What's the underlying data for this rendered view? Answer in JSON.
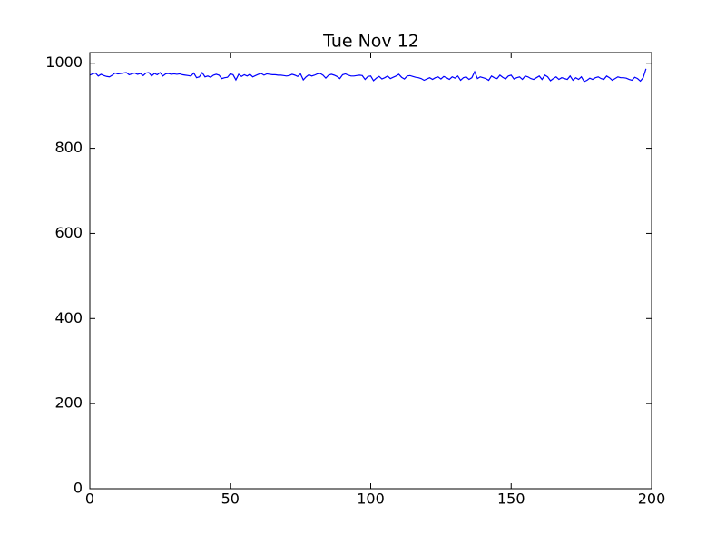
{
  "chart_data": {
    "type": "line",
    "title": "Tue Nov 12",
    "x": [
      0,
      1,
      2,
      3,
      4,
      5,
      6,
      7,
      8,
      9,
      10,
      11,
      12,
      13,
      14,
      15,
      16,
      17,
      18,
      19,
      20,
      21,
      22,
      23,
      24,
      25,
      26,
      27,
      28,
      29,
      30,
      31,
      32,
      33,
      34,
      35,
      36,
      37,
      38,
      39,
      40,
      41,
      42,
      43,
      44,
      45,
      46,
      47,
      48,
      49,
      50,
      51,
      52,
      53,
      54,
      55,
      56,
      57,
      58,
      59,
      60,
      61,
      62,
      63,
      64,
      65,
      66,
      67,
      68,
      69,
      70,
      71,
      72,
      73,
      74,
      75,
      76,
      77,
      78,
      79,
      80,
      81,
      82,
      83,
      84,
      85,
      86,
      87,
      88,
      89,
      90,
      91,
      92,
      93,
      94,
      95,
      96,
      97,
      98,
      99,
      100,
      101,
      102,
      103,
      104,
      105,
      106,
      107,
      108,
      109,
      110,
      111,
      112,
      113,
      114,
      115,
      116,
      117,
      118,
      119,
      120,
      121,
      122,
      123,
      124,
      125,
      126,
      127,
      128,
      129,
      130,
      131,
      132,
      133,
      134,
      135,
      136,
      137,
      138,
      139,
      140,
      141,
      142,
      143,
      144,
      145,
      146,
      147,
      148,
      149,
      150,
      151,
      152,
      153,
      154,
      155,
      156,
      157,
      158,
      159,
      160,
      161,
      162,
      163,
      164,
      165,
      166,
      167,
      168,
      169,
      170,
      171,
      172,
      173,
      174,
      175,
      176,
      177,
      178,
      179,
      180,
      181,
      182,
      183,
      184,
      185,
      186,
      187,
      188,
      189,
      190,
      191,
      192,
      193,
      194,
      195,
      196,
      197,
      198
    ],
    "series": [
      {
        "color": "#0000ff",
        "values": [
          972,
          975,
          977,
          970,
          974,
          971,
          969,
          968,
          972,
          977,
          975,
          976,
          977,
          978,
          973,
          975,
          977,
          974,
          976,
          971,
          977,
          978,
          970,
          976,
          973,
          978,
          970,
          975,
          976,
          974,
          975,
          974,
          975,
          973,
          972,
          971,
          970,
          977,
          966,
          968,
          978,
          968,
          970,
          967,
          972,
          974,
          972,
          964,
          966,
          967,
          975,
          973,
          961,
          974,
          969,
          973,
          970,
          974,
          968,
          971,
          974,
          976,
          972,
          975,
          974,
          973,
          973,
          972,
          972,
          971,
          970,
          971,
          974,
          972,
          969,
          975,
          961,
          968,
          973,
          970,
          972,
          975,
          976,
          972,
          965,
          972,
          974,
          972,
          969,
          964,
          973,
          975,
          972,
          970,
          970,
          971,
          972,
          971,
          962,
          969,
          970,
          959,
          965,
          969,
          963,
          966,
          970,
          964,
          967,
          970,
          974,
          967,
          963,
          970,
          971,
          969,
          967,
          966,
          964,
          960,
          963,
          966,
          962,
          966,
          968,
          963,
          969,
          966,
          962,
          968,
          965,
          970,
          960,
          966,
          968,
          962,
          966,
          980,
          964,
          968,
          966,
          964,
          960,
          970,
          966,
          964,
          972,
          967,
          963,
          970,
          972,
          963,
          966,
          968,
          962,
          970,
          968,
          964,
          962,
          966,
          970,
          962,
          972,
          968,
          959,
          964,
          968,
          962,
          966,
          964,
          962,
          970,
          960,
          966,
          962,
          968,
          957,
          960,
          965,
          962,
          966,
          968,
          964,
          962,
          970,
          966,
          960,
          964,
          968,
          966,
          966,
          965,
          962,
          960,
          967,
          964,
          958,
          966,
          987
        ]
      }
    ],
    "xlim": [
      0,
      200
    ],
    "ylim": [
      0,
      1025
    ],
    "xticks": [
      0,
      50,
      100,
      150,
      200
    ],
    "yticks": [
      0,
      200,
      400,
      600,
      800,
      1000
    ]
  }
}
